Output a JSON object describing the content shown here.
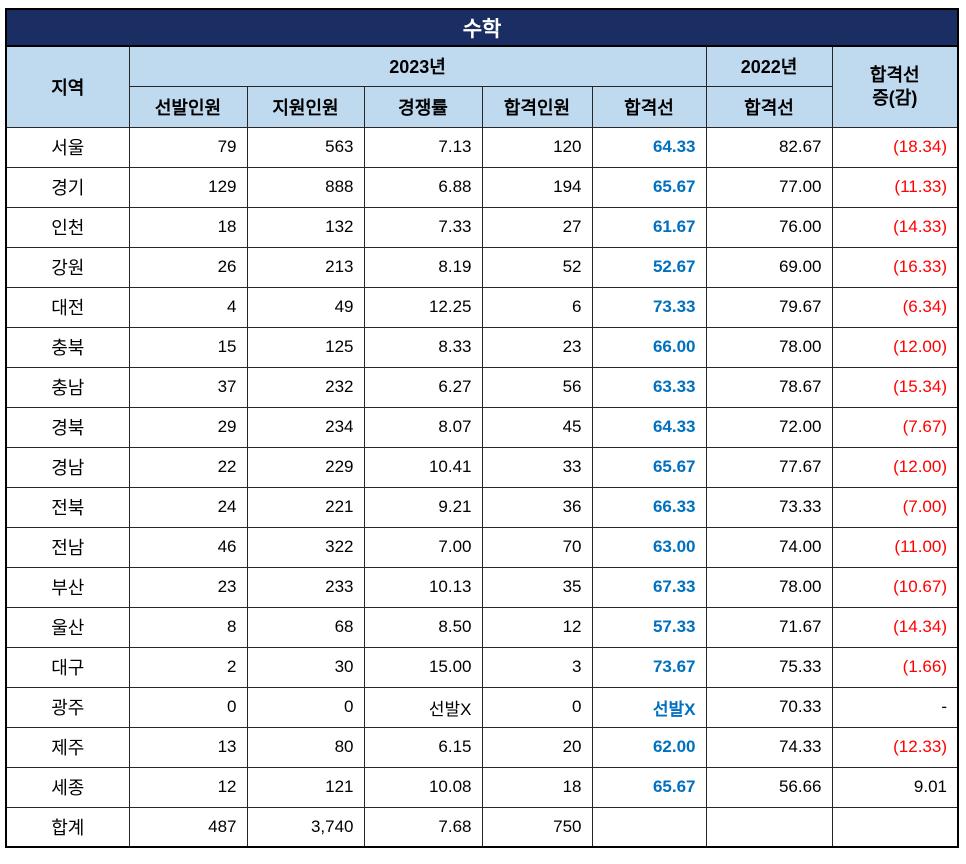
{
  "colors": {
    "title_bg": "#1B2E63",
    "title_text": "#FFFFFF",
    "header_bg": "#BFD9EF",
    "cutline_2023_text": "#0070C0",
    "decrease_text": "#FF0000",
    "body_text": "#000000",
    "border": "#262626"
  },
  "header": {
    "region": "지역",
    "year_2023": "2023년",
    "year_2022": "2022년",
    "sub_2023": [
      "선발인원",
      "지원인원",
      "경쟁률",
      "합격인원",
      "합격선"
    ],
    "sub_2022": "합격선",
    "change_line1": "합격선",
    "change_line2": "증(감)"
  },
  "chart_data": {
    "type": "table",
    "title": "수학",
    "columns": [
      "지역",
      "2023년 선발인원",
      "2023년 지원인원",
      "2023년 경쟁률",
      "2023년 합격인원",
      "2023년 합격선",
      "2022년 합격선",
      "합격선 증(감)"
    ],
    "rows": [
      {
        "region": "서울",
        "selected": "79",
        "applied": "563",
        "ratio": "7.13",
        "passed": "120",
        "cutline_2023": "64.33",
        "cutline_2022": "82.67",
        "change": "(18.34)",
        "change_negative": true,
        "total": false
      },
      {
        "region": "경기",
        "selected": "129",
        "applied": "888",
        "ratio": "6.88",
        "passed": "194",
        "cutline_2023": "65.67",
        "cutline_2022": "77.00",
        "change": "(11.33)",
        "change_negative": true,
        "total": false
      },
      {
        "region": "인천",
        "selected": "18",
        "applied": "132",
        "ratio": "7.33",
        "passed": "27",
        "cutline_2023": "61.67",
        "cutline_2022": "76.00",
        "change": "(14.33)",
        "change_negative": true,
        "total": false
      },
      {
        "region": "강원",
        "selected": "26",
        "applied": "213",
        "ratio": "8.19",
        "passed": "52",
        "cutline_2023": "52.67",
        "cutline_2022": "69.00",
        "change": "(16.33)",
        "change_negative": true,
        "total": false
      },
      {
        "region": "대전",
        "selected": "4",
        "applied": "49",
        "ratio": "12.25",
        "passed": "6",
        "cutline_2023": "73.33",
        "cutline_2022": "79.67",
        "change": "(6.34)",
        "change_negative": true,
        "total": false
      },
      {
        "region": "충북",
        "selected": "15",
        "applied": "125",
        "ratio": "8.33",
        "passed": "23",
        "cutline_2023": "66.00",
        "cutline_2022": "78.00",
        "change": "(12.00)",
        "change_negative": true,
        "total": false
      },
      {
        "region": "충남",
        "selected": "37",
        "applied": "232",
        "ratio": "6.27",
        "passed": "56",
        "cutline_2023": "63.33",
        "cutline_2022": "78.67",
        "change": "(15.34)",
        "change_negative": true,
        "total": false
      },
      {
        "region": "경북",
        "selected": "29",
        "applied": "234",
        "ratio": "8.07",
        "passed": "45",
        "cutline_2023": "64.33",
        "cutline_2022": "72.00",
        "change": "(7.67)",
        "change_negative": true,
        "total": false
      },
      {
        "region": "경남",
        "selected": "22",
        "applied": "229",
        "ratio": "10.41",
        "passed": "33",
        "cutline_2023": "65.67",
        "cutline_2022": "77.67",
        "change": "(12.00)",
        "change_negative": true,
        "total": false
      },
      {
        "region": "전북",
        "selected": "24",
        "applied": "221",
        "ratio": "9.21",
        "passed": "36",
        "cutline_2023": "66.33",
        "cutline_2022": "73.33",
        "change": "(7.00)",
        "change_negative": true,
        "total": false
      },
      {
        "region": "전남",
        "selected": "46",
        "applied": "322",
        "ratio": "7.00",
        "passed": "70",
        "cutline_2023": "63.00",
        "cutline_2022": "74.00",
        "change": "(11.00)",
        "change_negative": true,
        "total": false
      },
      {
        "region": "부산",
        "selected": "23",
        "applied": "233",
        "ratio": "10.13",
        "passed": "35",
        "cutline_2023": "67.33",
        "cutline_2022": "78.00",
        "change": "(10.67)",
        "change_negative": true,
        "total": false
      },
      {
        "region": "울산",
        "selected": "8",
        "applied": "68",
        "ratio": "8.50",
        "passed": "12",
        "cutline_2023": "57.33",
        "cutline_2022": "71.67",
        "change": "(14.34)",
        "change_negative": true,
        "total": false
      },
      {
        "region": "대구",
        "selected": "2",
        "applied": "30",
        "ratio": "15.00",
        "passed": "3",
        "cutline_2023": "73.67",
        "cutline_2022": "75.33",
        "change": "(1.66)",
        "change_negative": true,
        "total": false
      },
      {
        "region": "광주",
        "selected": "0",
        "applied": "0",
        "ratio": "선발X",
        "passed": "0",
        "cutline_2023": "선발X",
        "cutline_2022": "70.33",
        "change": "-",
        "change_negative": false,
        "total": false
      },
      {
        "region": "제주",
        "selected": "13",
        "applied": "80",
        "ratio": "6.15",
        "passed": "20",
        "cutline_2023": "62.00",
        "cutline_2022": "74.33",
        "change": "(12.33)",
        "change_negative": true,
        "total": false
      },
      {
        "region": "세종",
        "selected": "12",
        "applied": "121",
        "ratio": "10.08",
        "passed": "18",
        "cutline_2023": "65.67",
        "cutline_2022": "56.66",
        "change": "9.01",
        "change_negative": false,
        "total": false
      },
      {
        "region": "합계",
        "selected": "487",
        "applied": "3,740",
        "ratio": "7.68",
        "passed": "750",
        "cutline_2023": "",
        "cutline_2022": "",
        "change": "",
        "change_negative": false,
        "total": true
      }
    ]
  }
}
